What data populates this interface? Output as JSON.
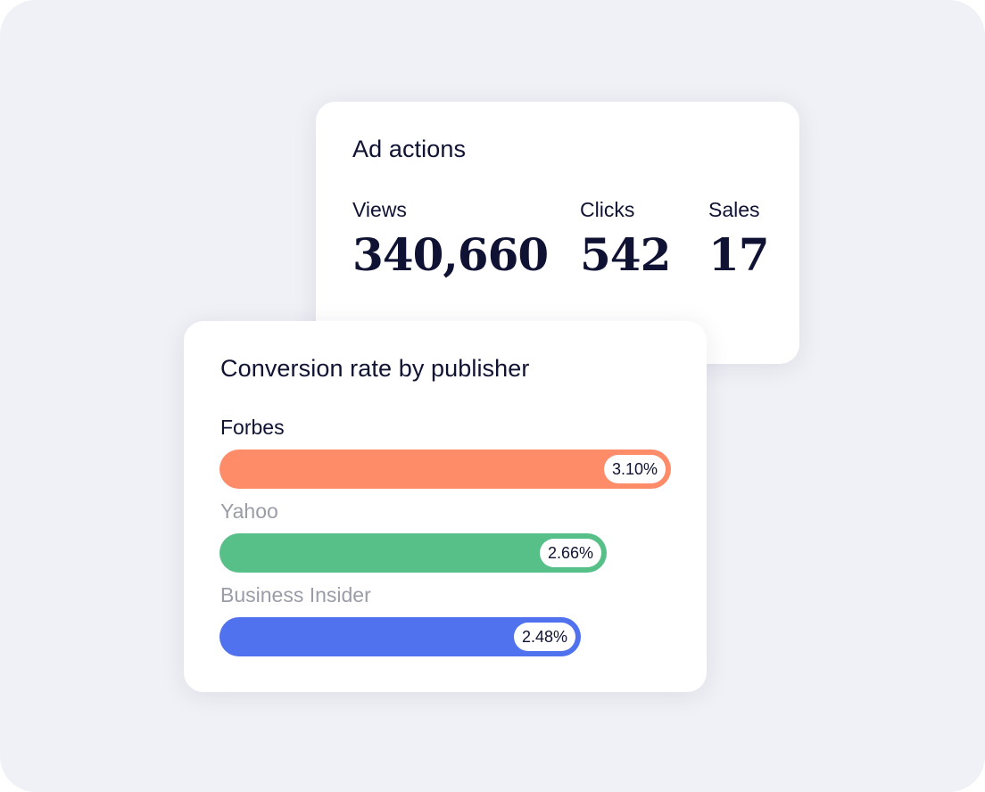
{
  "ad_actions": {
    "title": "Ad actions",
    "metrics": [
      {
        "label": "Views",
        "value": "340,660"
      },
      {
        "label": "Clicks",
        "value": "542"
      },
      {
        "label": "Sales",
        "value": "17"
      }
    ]
  },
  "conversion": {
    "title": "Conversion rate by publisher",
    "publishers": [
      {
        "name": "Forbes",
        "rate": "3.10%",
        "value": 3.1,
        "color": "#ff8c69"
      },
      {
        "name": "Yahoo",
        "rate": "2.66%",
        "value": 2.66,
        "color": "#57c088"
      },
      {
        "name": "Business Insider",
        "rate": "2.48%",
        "value": 2.48,
        "color": "#5072ee"
      }
    ]
  },
  "chart_data": {
    "type": "bar",
    "categories": [
      "Forbes",
      "Yahoo",
      "Business Insider"
    ],
    "values": [
      3.1,
      2.66,
      2.48
    ],
    "title": "Conversion rate by publisher",
    "orientation": "horizontal",
    "colors": [
      "#ff8c69",
      "#57c088",
      "#5072ee"
    ]
  }
}
